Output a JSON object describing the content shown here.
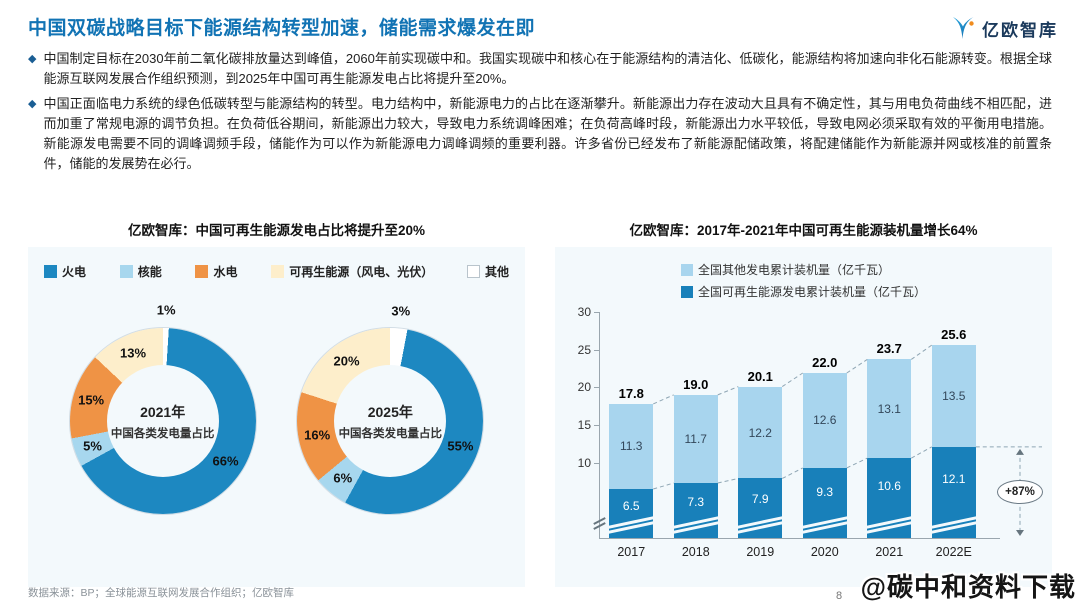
{
  "header": {
    "title": "中国双碳战略目标下能源结构转型加速，储能需求爆发在即",
    "logo_text": "亿欧智库"
  },
  "bullets": [
    "中国制定目标在2030年前二氧化碳排放量达到峰值，2060年前实现碳中和。我国实现碳中和核心在于能源结构的清洁化、低碳化，能源结构将加速向非化石能源转变。根据全球能源互联网发展合作组织预测，到2025年中国可再生能源发电占比将提升至20%。",
    "中国正面临电力系统的绿色低碳转型与能源结构的转型。电力结构中，新能源电力的占比在逐渐攀升。新能源出力存在波动大且具有不确定性，其与用电负荷曲线不相匹配，进而加重了常规电源的调节负担。在负荷低谷期间，新能源出力较大，导致电力系统调峰困难；在负荷高峰时段，新能源出力水平较低，导致电网必须采取有效的平衡用电措施。新能源发电需要不同的调峰调频手段，储能作为可以作为新能源电力调峰调频的重要利器。许多省份已经发布了新能源配储政策，将配建储能作为新能源并网或核准的前置条件，储能的发展势在必行。"
  ],
  "colors": {
    "accent_blue": "#1173b4",
    "pie": [
      "#1d88c1",
      "#a7d7ee",
      "#ef9345",
      "#fdeecb",
      "#ffffff"
    ],
    "bar": [
      "#1880ba",
      "#a8d5ee"
    ],
    "panel_bg": "#f3f9fc"
  },
  "left_chart": {
    "title": "亿欧智库：中国可再生能源发电占比将提升至20%",
    "donut_centers": [
      {
        "year": "2021年",
        "caption": "中国各类发电量占比"
      },
      {
        "year": "2025年",
        "caption": "中国各类发电量占比"
      }
    ]
  },
  "right_chart": {
    "title": "亿欧智库：2017年-2021年中国可再生能源装机量增长64%"
  },
  "chart_data": [
    {
      "type": "pie",
      "subtype": "donut",
      "title": "亿欧智库：中国可再生能源发电占比将提升至20%",
      "categories": [
        "火电",
        "核能",
        "水电",
        "可再生能源（风电、光伏）",
        "其他"
      ],
      "series": [
        {
          "name": "2021年中国各类发电量占比",
          "values": [
            66,
            5,
            15,
            13,
            1
          ]
        },
        {
          "name": "2025年中国各类发电量占比",
          "values": [
            55,
            6,
            16,
            20,
            3
          ]
        }
      ],
      "unit": "%"
    },
    {
      "type": "bar",
      "stacked": true,
      "title": "亿欧智库：2017年-2021年中国可再生能源装机量增长64%",
      "categories": [
        "2017",
        "2018",
        "2019",
        "2020",
        "2021",
        "2022E"
      ],
      "series": [
        {
          "name": "全国可再生能源发电累计装机量（亿千瓦）",
          "values": [
            6.5,
            7.3,
            7.9,
            9.3,
            10.6,
            12.1
          ]
        },
        {
          "name": "全国其他发电累计装机量（亿千瓦）",
          "values": [
            11.3,
            11.7,
            12.2,
            12.6,
            13.1,
            13.5
          ]
        }
      ],
      "total_labels": [
        "17.8",
        "19.0",
        "20.1",
        "22.0",
        "23.7",
        "25.6"
      ],
      "ylim": [
        0,
        30
      ],
      "yticks": [
        10,
        15,
        20,
        25,
        30
      ],
      "axis_break": true,
      "annotation": "+87%",
      "legend_position": "top"
    }
  ],
  "footer": {
    "source": "数据来源：BP；全球能源互联网发展合作组织；亿欧智库",
    "page": "8"
  },
  "watermark": "@碳中和资料下载"
}
